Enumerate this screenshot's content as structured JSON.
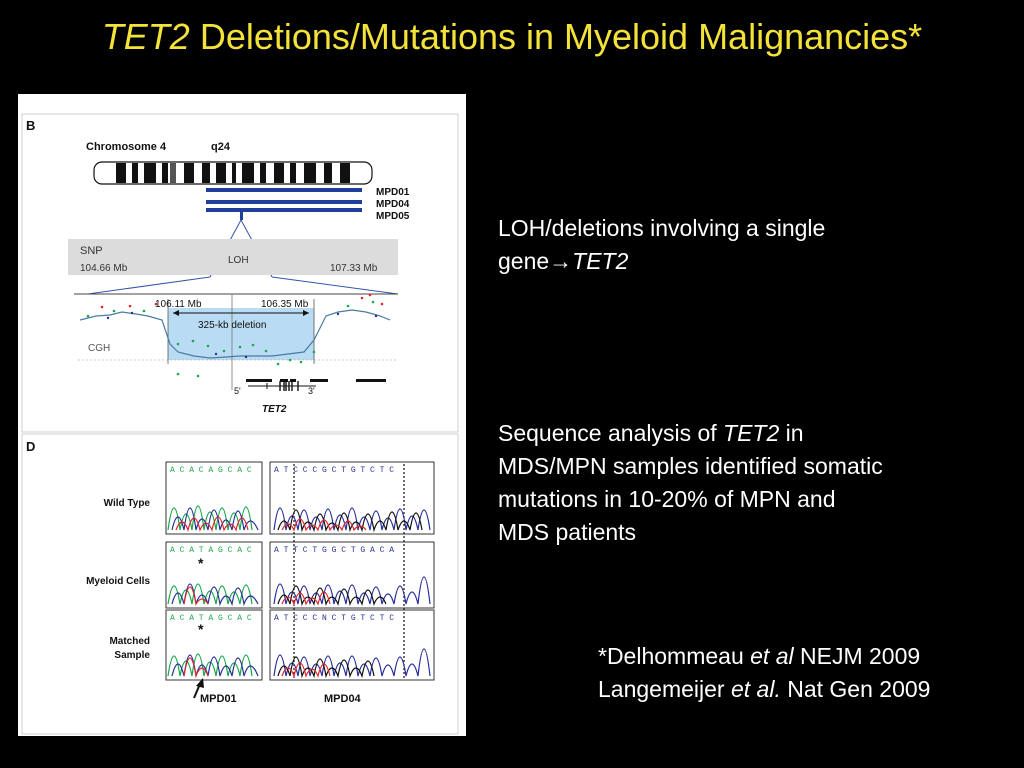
{
  "slide": {
    "title_gene": "TET2",
    "title_rest": " Deletions/Mutations in Myeloid Malignancies*"
  },
  "figure": {
    "panel_b": {
      "label": "B",
      "chromosome_label": "Chromosome 4",
      "band_label": "q24",
      "samples": [
        "MPD01",
        "MPD04",
        "MPD05"
      ],
      "snp_label": "SNP",
      "loh_label": "LOH",
      "snp_start": "104.66 Mb",
      "snp_end": "107.33 Mb",
      "cgh_start": "106.11 Mb",
      "cgh_end": "106.35 Mb",
      "deletion_label": "325-kb deletion",
      "cgh_label": "CGH",
      "five_prime": "5'",
      "three_prime": "3'",
      "gene_label": "TET2"
    },
    "panel_d": {
      "label": "D",
      "rows": [
        {
          "label": "Wild Type",
          "seq_left": "A C A C A G C A C",
          "seq_right": "A T C C C G C T G T C T C"
        },
        {
          "label": "Myeloid Cells",
          "seq_left": "A C A T A G C A C",
          "seq_right": "A T T C T G G C T G A C A"
        },
        {
          "label_line1": "Matched",
          "label_line2": "Sample",
          "seq_left": "A C A T A G C A C",
          "seq_right": "A T C C C N C T G T C T C"
        }
      ],
      "sample_left": "MPD01",
      "sample_right": "MPD04",
      "marker": "*"
    }
  },
  "bullets": {
    "loh_line1": "LOH/deletions involving a single",
    "loh_line2_prefix": "gene",
    "loh_arrow": "→",
    "loh_gene": "TET2",
    "seq_prefix": "Sequence analysis of ",
    "seq_gene": "TET2",
    "seq_suffix": " in",
    "seq_line2": "MDS/MPN samples identified somatic",
    "seq_line3": "mutations in 10-20% of MPN and",
    "seq_line4": "MDS patients"
  },
  "references": {
    "ref1_prefix": "*Delhommeau ",
    "ref1_etal": "et al",
    "ref1_suffix": " NEJM 2009",
    "ref2_prefix": "Langemeijer ",
    "ref2_etal": "et al.",
    "ref2_suffix": " Nat Gen 2009"
  },
  "colors": {
    "title": "#f3e23a",
    "background": "#000000",
    "mpd_bars": "#1f3f9a",
    "deletion_box": "#b9dbf3",
    "trace_green": "#1aa84a",
    "trace_red": "#e0282c",
    "trace_blue": "#27309a",
    "trace_black": "#111111"
  }
}
